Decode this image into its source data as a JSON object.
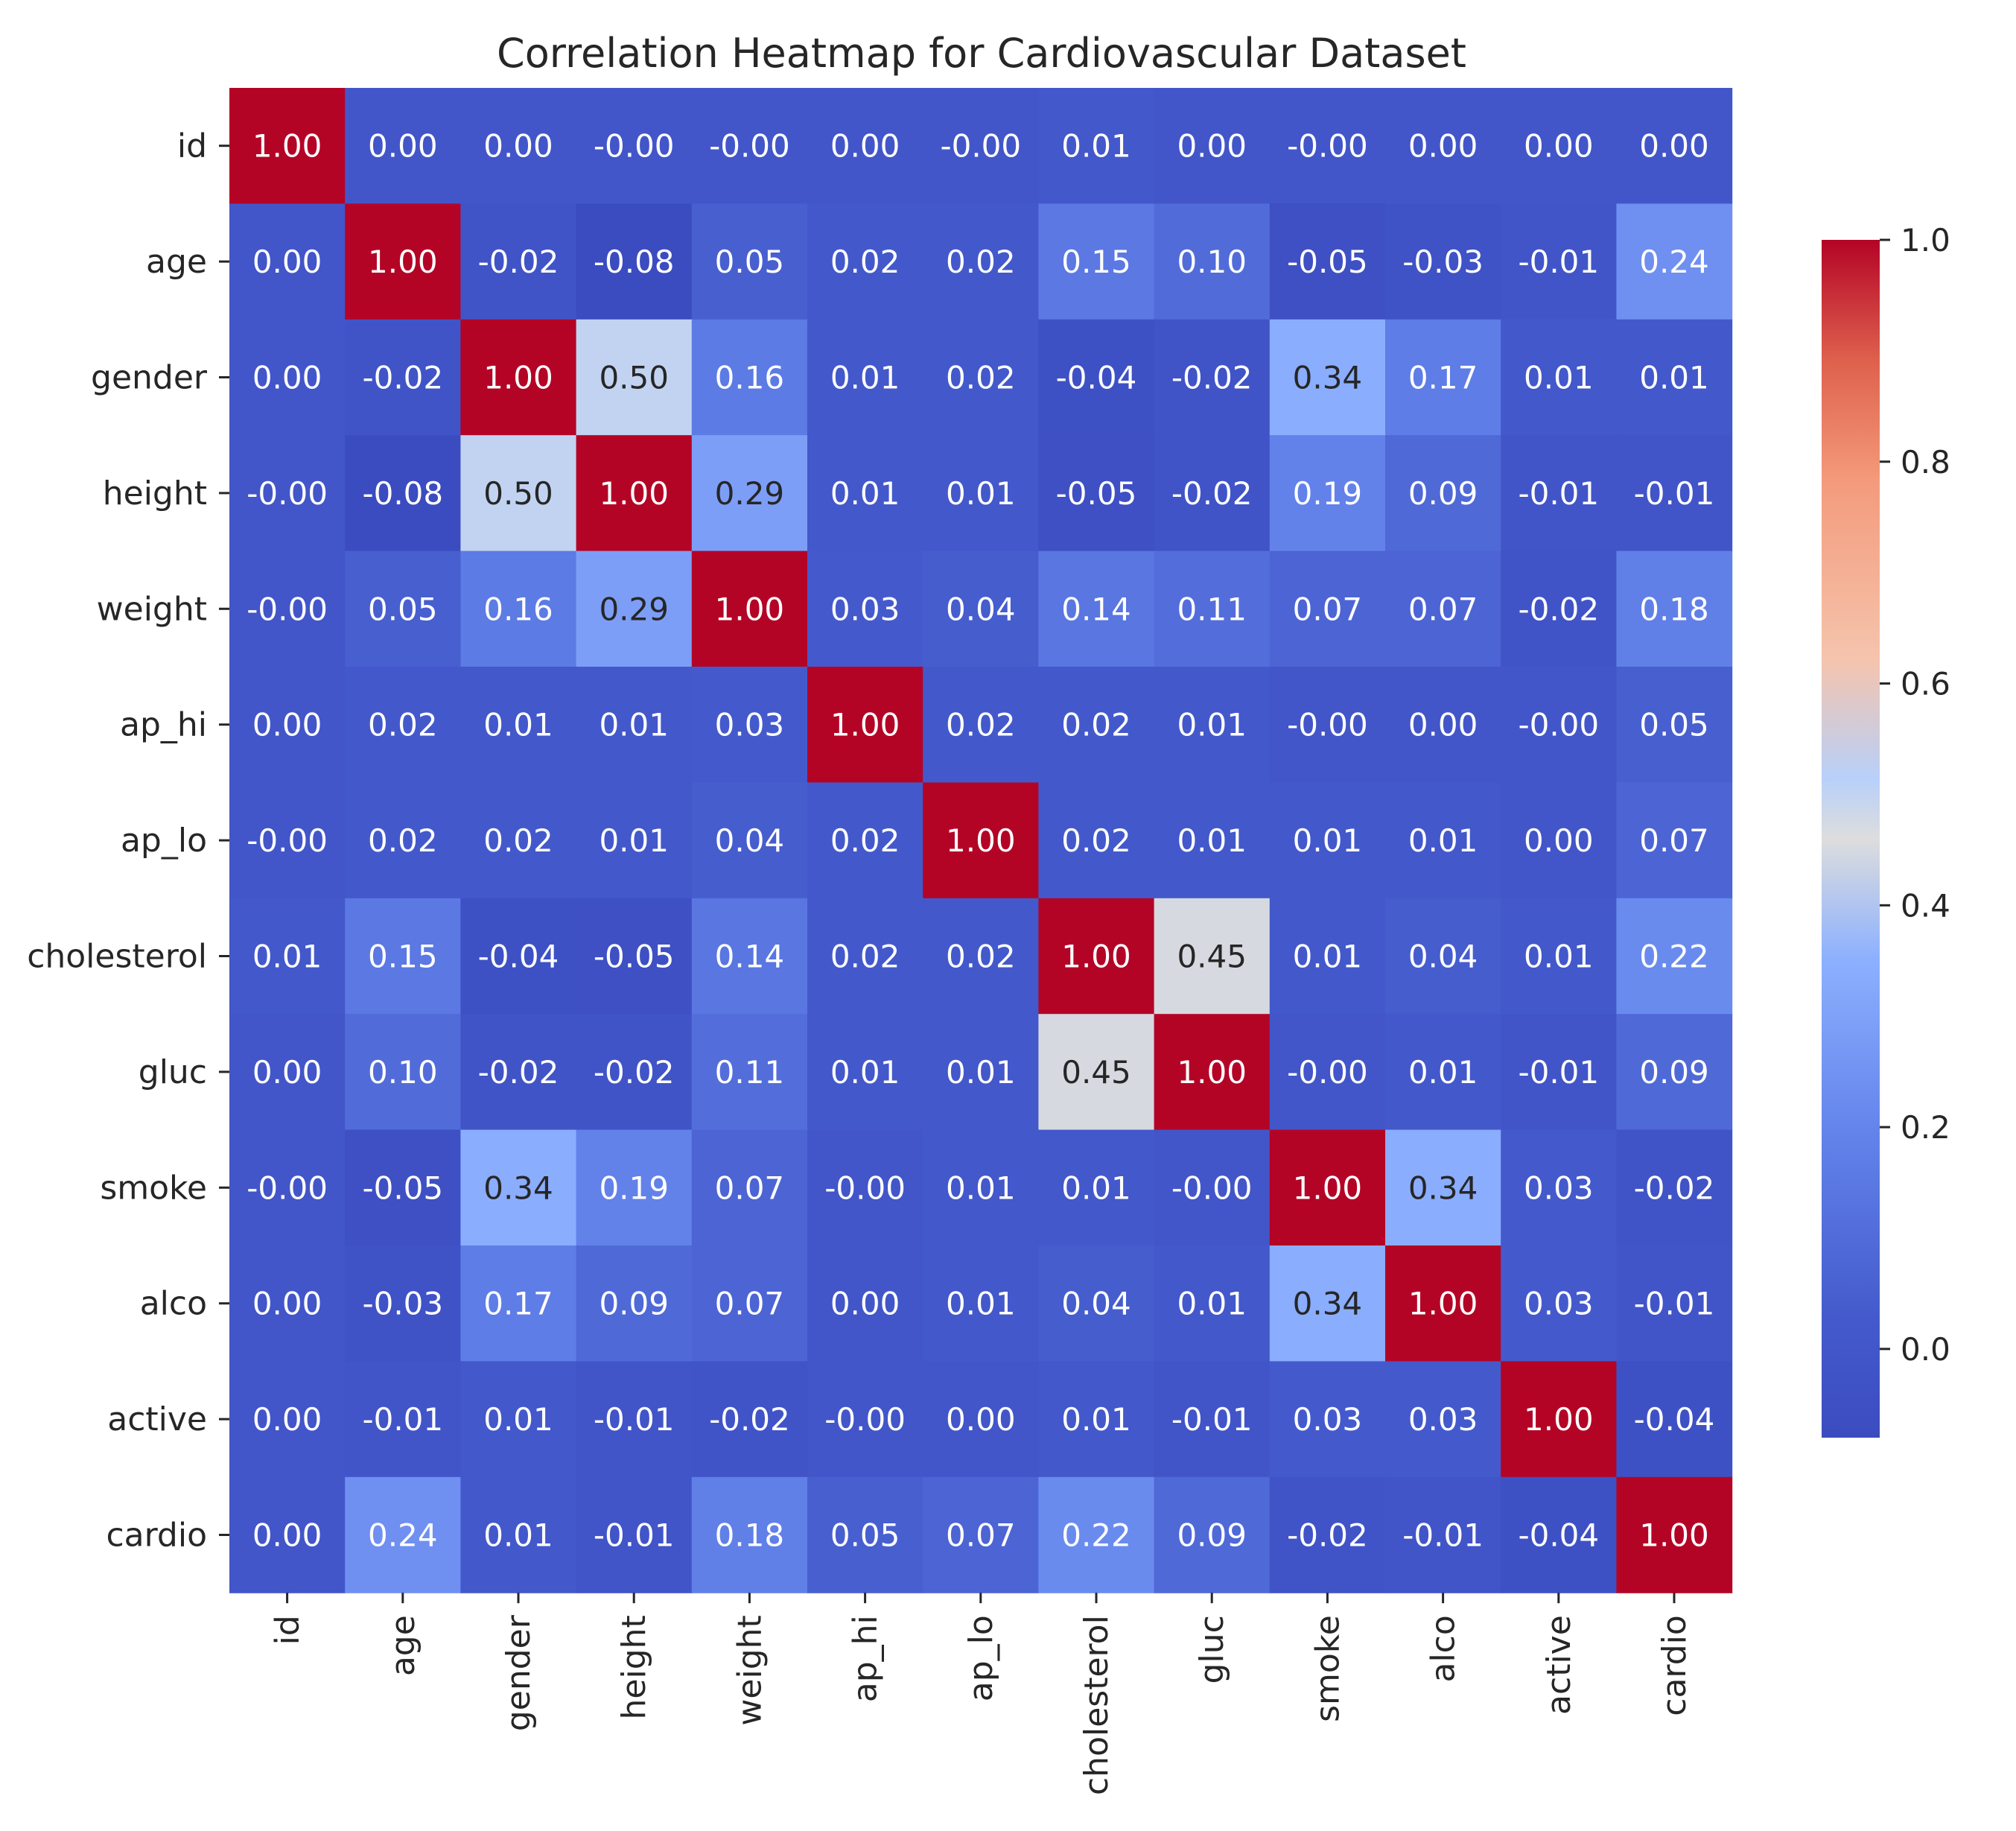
{
  "chart_data": {
    "type": "heatmap",
    "title": "Correlation Heatmap for Cardiovascular Dataset",
    "xlabel": "",
    "ylabel": "",
    "labels": [
      "id",
      "age",
      "gender",
      "height",
      "weight",
      "ap_hi",
      "ap_lo",
      "cholesterol",
      "gluc",
      "smoke",
      "alco",
      "active",
      "cardio"
    ],
    "values": [
      [
        1.0,
        0.0,
        0.0,
        -0.0,
        -0.0,
        0.0,
        -0.0,
        0.01,
        0.0,
        -0.0,
        0.0,
        0.0,
        0.0
      ],
      [
        0.0,
        1.0,
        -0.02,
        -0.08,
        0.05,
        0.02,
        0.02,
        0.15,
        0.1,
        -0.05,
        -0.03,
        -0.01,
        0.24
      ],
      [
        0.0,
        -0.02,
        1.0,
        0.5,
        0.16,
        0.01,
        0.02,
        -0.04,
        -0.02,
        0.34,
        0.17,
        0.01,
        0.01
      ],
      [
        -0.0,
        -0.08,
        0.5,
        1.0,
        0.29,
        0.01,
        0.01,
        -0.05,
        -0.02,
        0.19,
        0.09,
        -0.01,
        -0.01
      ],
      [
        -0.0,
        0.05,
        0.16,
        0.29,
        1.0,
        0.03,
        0.04,
        0.14,
        0.11,
        0.07,
        0.07,
        -0.02,
        0.18
      ],
      [
        0.0,
        0.02,
        0.01,
        0.01,
        0.03,
        1.0,
        0.02,
        0.02,
        0.01,
        -0.0,
        0.0,
        -0.0,
        0.05
      ],
      [
        -0.0,
        0.02,
        0.02,
        0.01,
        0.04,
        0.02,
        1.0,
        0.02,
        0.01,
        0.01,
        0.01,
        0.0,
        0.07
      ],
      [
        0.01,
        0.15,
        -0.04,
        -0.05,
        0.14,
        0.02,
        0.02,
        1.0,
        0.45,
        0.01,
        0.04,
        0.01,
        0.22
      ],
      [
        0.0,
        0.1,
        -0.02,
        -0.02,
        0.11,
        0.01,
        0.01,
        0.45,
        1.0,
        -0.0,
        0.01,
        -0.01,
        0.09
      ],
      [
        -0.0,
        -0.05,
        0.34,
        0.19,
        0.07,
        -0.0,
        0.01,
        0.01,
        -0.0,
        1.0,
        0.34,
        0.03,
        -0.02
      ],
      [
        0.0,
        -0.03,
        0.17,
        0.09,
        0.07,
        0.0,
        0.01,
        0.04,
        0.01,
        0.34,
        1.0,
        0.03,
        -0.01
      ],
      [
        0.0,
        -0.01,
        0.01,
        -0.01,
        -0.02,
        -0.0,
        0.0,
        0.01,
        -0.01,
        0.03,
        0.03,
        1.0,
        -0.04
      ],
      [
        0.0,
        0.24,
        0.01,
        -0.01,
        0.18,
        0.05,
        0.07,
        0.22,
        0.09,
        -0.02,
        -0.01,
        -0.04,
        1.0
      ]
    ],
    "annotations": [
      [
        "1.00",
        "0.00",
        "0.00",
        "-0.00",
        "-0.00",
        "0.00",
        "-0.00",
        "0.01",
        "0.00",
        "-0.00",
        "0.00",
        "0.00",
        "0.00"
      ],
      [
        "0.00",
        "1.00",
        "-0.02",
        "-0.08",
        "0.05",
        "0.02",
        "0.02",
        "0.15",
        "0.10",
        "-0.05",
        "-0.03",
        "-0.01",
        "0.24"
      ],
      [
        "0.00",
        "-0.02",
        "1.00",
        "0.50",
        "0.16",
        "0.01",
        "0.02",
        "-0.04",
        "-0.02",
        "0.34",
        "0.17",
        "0.01",
        "0.01"
      ],
      [
        "-0.00",
        "-0.08",
        "0.50",
        "1.00",
        "0.29",
        "0.01",
        "0.01",
        "-0.05",
        "-0.02",
        "0.19",
        "0.09",
        "-0.01",
        "-0.01"
      ],
      [
        "-0.00",
        "0.05",
        "0.16",
        "0.29",
        "1.00",
        "0.03",
        "0.04",
        "0.14",
        "0.11",
        "0.07",
        "0.07",
        "-0.02",
        "0.18"
      ],
      [
        "0.00",
        "0.02",
        "0.01",
        "0.01",
        "0.03",
        "1.00",
        "0.02",
        "0.02",
        "0.01",
        "-0.00",
        "0.00",
        "-0.00",
        "0.05"
      ],
      [
        "-0.00",
        "0.02",
        "0.02",
        "0.01",
        "0.04",
        "0.02",
        "1.00",
        "0.02",
        "0.01",
        "0.01",
        "0.01",
        "0.00",
        "0.07"
      ],
      [
        "0.01",
        "0.15",
        "-0.04",
        "-0.05",
        "0.14",
        "0.02",
        "0.02",
        "1.00",
        "0.45",
        "0.01",
        "0.04",
        "0.01",
        "0.22"
      ],
      [
        "0.00",
        "0.10",
        "-0.02",
        "-0.02",
        "0.11",
        "0.01",
        "0.01",
        "0.45",
        "1.00",
        "-0.00",
        "0.01",
        "-0.01",
        "0.09"
      ],
      [
        "-0.00",
        "-0.05",
        "0.34",
        "0.19",
        "0.07",
        "-0.00",
        "0.01",
        "0.01",
        "-0.00",
        "1.00",
        "0.34",
        "0.03",
        "-0.02"
      ],
      [
        "0.00",
        "-0.03",
        "0.17",
        "0.09",
        "0.07",
        "0.00",
        "0.01",
        "0.04",
        "0.01",
        "0.34",
        "1.00",
        "0.03",
        "-0.01"
      ],
      [
        "0.00",
        "-0.01",
        "0.01",
        "-0.01",
        "-0.02",
        "-0.00",
        "0.00",
        "0.01",
        "-0.01",
        "0.03",
        "0.03",
        "1.00",
        "-0.04"
      ],
      [
        "0.00",
        "0.24",
        "0.01",
        "-0.01",
        "0.18",
        "0.05",
        "0.07",
        "0.22",
        "0.09",
        "-0.02",
        "-0.01",
        "-0.04",
        "1.00"
      ]
    ],
    "colormap": "coolwarm",
    "colorbar": {
      "vmin": -0.08,
      "vmax": 1.0,
      "ticks": [
        0.0,
        0.2,
        0.4,
        0.6,
        0.8,
        1.0
      ],
      "tick_labels": [
        "0.0",
        "0.2",
        "0.4",
        "0.6",
        "0.8",
        "1.0"
      ],
      "placement": "right"
    },
    "colors": {
      "cold": "#3b4cc0",
      "neutral": "#dddddd",
      "hot": "#b40426",
      "text_dark": "#262626",
      "text_light": "#ffffff"
    }
  }
}
